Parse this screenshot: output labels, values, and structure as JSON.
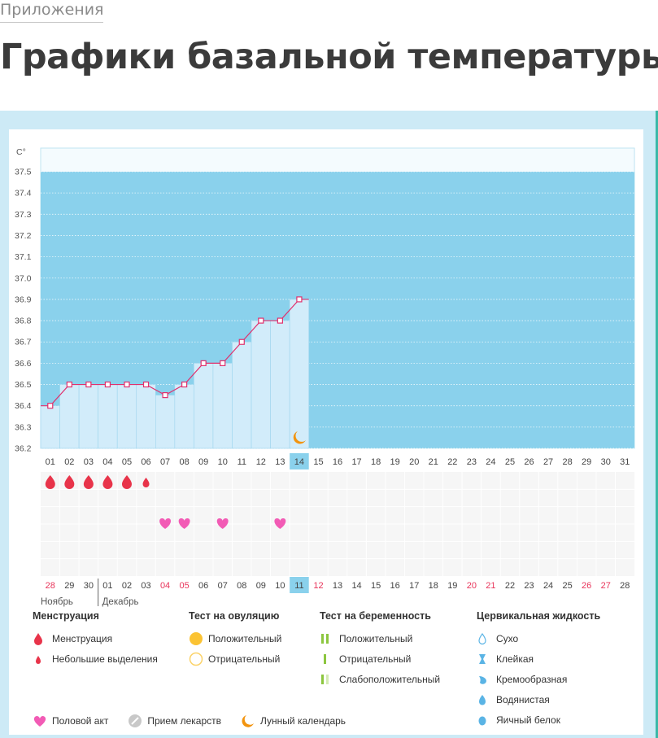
{
  "breadcrumb": "Приложения",
  "page_title": "Графики базальной температуры",
  "colors": {
    "panel_bg": "#cdeaf6",
    "plot_bg": "#8ad1ec",
    "bar_fill": "#d2ecfa",
    "line": "#e0306d",
    "today_bg": "#8ad1ec",
    "red_day": "#e8345a",
    "menstruation": "#e8344a",
    "heart": "#f25bb5",
    "moon": "#f2940f",
    "test_positive_circle": "#fbc333",
    "pregnancy_green": "#8cc63f",
    "cervical_blue": "#5ab4e5"
  },
  "chart_data": {
    "type": "line",
    "y_unit": "C°",
    "yticks": [
      "37.5",
      "37.4",
      "37.3",
      "37.2",
      "37.1",
      "37.0",
      "36.9",
      "36.8",
      "36.7",
      "36.6",
      "36.5",
      "36.4",
      "36.3",
      "36.2"
    ],
    "ylim": [
      36.2,
      37.5
    ],
    "x_cycle_days": [
      "01",
      "02",
      "03",
      "04",
      "05",
      "06",
      "07",
      "08",
      "09",
      "10",
      "11",
      "12",
      "13",
      "14",
      "15",
      "16",
      "17",
      "18",
      "19",
      "20",
      "21",
      "22",
      "23",
      "24",
      "25",
      "26",
      "27",
      "28",
      "29",
      "30",
      "31"
    ],
    "today_index": 13,
    "series": [
      {
        "values": [
          36.4,
          36.5,
          36.5,
          36.5,
          36.5,
          36.5,
          36.45,
          36.5,
          36.6,
          36.6,
          36.7,
          36.8,
          36.8,
          36.9
        ]
      }
    ],
    "grid": true,
    "menstruation_marks": [
      "large",
      "large",
      "large",
      "large",
      "large",
      "small"
    ],
    "intercourse_days": [
      "07",
      "08",
      "10",
      "13"
    ],
    "lunar_day": "14",
    "calendar_dates": [
      "28",
      "29",
      "30",
      "01",
      "02",
      "03",
      "04",
      "05",
      "06",
      "07",
      "08",
      "09",
      "10",
      "11",
      "12",
      "13",
      "14",
      "15",
      "16",
      "17",
      "18",
      "19",
      "20",
      "21",
      "22",
      "23",
      "24",
      "25",
      "26",
      "27",
      "28"
    ],
    "calendar_red_dates": [
      0,
      6,
      7,
      14,
      22,
      23,
      28,
      29
    ],
    "month_labels": [
      "Ноябрь",
      "Декабрь"
    ]
  },
  "legend": {
    "menstruation": {
      "title": "Менструация",
      "items": [
        "Менструация",
        "Небольшие выделения"
      ]
    },
    "ovulation_test": {
      "title": "Тест на овуляцию",
      "items": [
        "Положительный",
        "Отрицательный"
      ]
    },
    "pregnancy_test": {
      "title": "Тест на беременность",
      "items": [
        "Положительный",
        "Отрицательный",
        "Слабоположительный"
      ]
    },
    "cervical_fluid": {
      "title": "Цервикальная жидкость",
      "items": [
        "Сухо",
        "Клейкая",
        "Кремообразная",
        "Водянистая",
        "Яичный белок"
      ]
    },
    "bottom_items": [
      "Половой акт",
      "Прием лекарств",
      "Лунный календарь"
    ]
  }
}
